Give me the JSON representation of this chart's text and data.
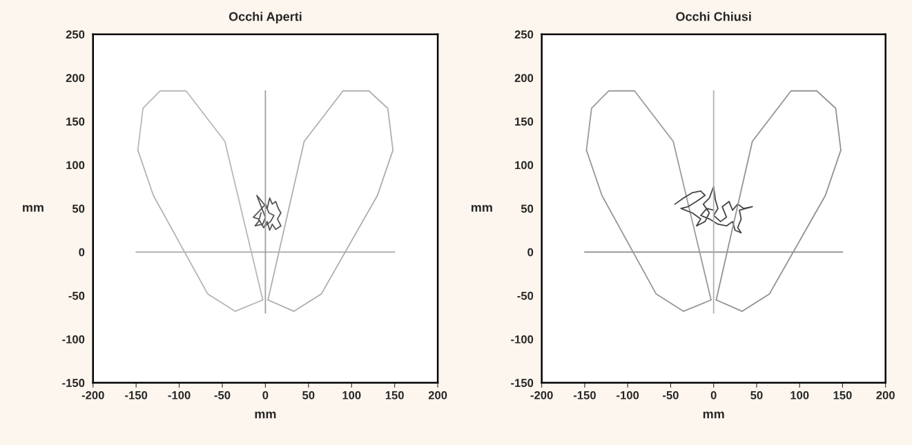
{
  "chart_data": [
    {
      "type": "line",
      "title": "Occhi Aperti",
      "xlabel": "mm",
      "ylabel": "mm",
      "xlim": [
        -200,
        200
      ],
      "ylim": [
        -150,
        250
      ],
      "xticks": [
        -200,
        -150,
        -100,
        -50,
        0,
        50,
        100,
        150,
        200
      ],
      "yticks": [
        -150,
        -100,
        -50,
        0,
        50,
        100,
        150,
        200,
        250
      ],
      "grid": false,
      "legend": false,
      "marker": "none",
      "line_style": "solid",
      "series": [
        {
          "color": "#a8a8a8",
          "x": [
            -150,
            150
          ],
          "values": [
            0,
            0
          ]
        },
        {
          "color": "#b8b8b8",
          "x": [
            -148,
            -142,
            -122,
            -92,
            -47,
            -3
          ],
          "values": [
            117,
            165,
            185,
            185,
            127,
            -55
          ]
        },
        {
          "color": "#555555",
          "x": [
            -5,
            -8,
            -12,
            -3,
            0,
            -6,
            -10,
            -4,
            2,
            5,
            8,
            12,
            15,
            18,
            14,
            18,
            12,
            8,
            5,
            2,
            -2,
            -8,
            -14,
            -6,
            0,
            4,
            10,
            6,
            0
          ],
          "values": [
            45,
            35,
            30,
            32,
            40,
            55,
            65,
            58,
            50,
            62,
            55,
            58,
            50,
            45,
            38,
            30,
            26,
            32,
            25,
            35,
            28,
            38,
            40,
            48,
            55,
            45,
            42,
            35,
            30
          ]
        },
        {
          "color": "#a0a0a0",
          "x": [
            0,
            0
          ],
          "values": [
            -70,
            185
          ]
        },
        {
          "color": "#b0b0b0",
          "x": [
            148,
            142,
            120,
            90,
            45,
            3
          ],
          "values": [
            117,
            165,
            185,
            185,
            127,
            -55
          ]
        },
        {
          "color": "#b4b4b4",
          "x": [
            -3,
            -35,
            -67,
            -130,
            -148
          ],
          "values": [
            -55,
            -68,
            -48,
            65,
            117
          ]
        },
        {
          "color": "#acacac",
          "x": [
            3,
            33,
            65,
            130,
            148
          ],
          "values": [
            -55,
            -68,
            -48,
            65,
            117
          ]
        }
      ]
    },
    {
      "type": "line",
      "title": "Occhi Chiusi",
      "xlabel": "mm",
      "ylabel": "mm",
      "xlim": [
        -200,
        200
      ],
      "ylim": [
        -150,
        250
      ],
      "xticks": [
        -200,
        -150,
        -100,
        -50,
        0,
        50,
        100,
        150,
        200
      ],
      "yticks": [
        -150,
        -100,
        -50,
        0,
        50,
        100,
        150,
        200,
        250
      ],
      "grid": false,
      "legend": false,
      "marker": "none",
      "line_style": "solid",
      "series": [
        {
          "color": "#8a8a8a",
          "x": [
            -150,
            150
          ],
          "values": [
            0,
            0
          ]
        },
        {
          "color": "#9a9a9a",
          "x": [
            -148,
            -142,
            -122,
            -92,
            -47,
            -3
          ],
          "values": [
            117,
            165,
            185,
            185,
            127,
            -55
          ]
        },
        {
          "color": "#444444",
          "x": [
            -45,
            -35,
            -25,
            -15,
            -10,
            -20,
            -30,
            -38,
            -25,
            -15,
            -20,
            -10,
            -5,
            -12,
            -5,
            0,
            2,
            5,
            0,
            8,
            15,
            10,
            18,
            22,
            28,
            35,
            45,
            30,
            32,
            28,
            32,
            25,
            22,
            15,
            5,
            -5,
            -15,
            -8,
            0
          ],
          "values": [
            55,
            62,
            68,
            70,
            65,
            58,
            52,
            50,
            45,
            38,
            30,
            35,
            45,
            55,
            62,
            75,
            60,
            50,
            42,
            35,
            40,
            52,
            58,
            48,
            55,
            50,
            52,
            48,
            38,
            28,
            22,
            25,
            35,
            30,
            32,
            38,
            42,
            50,
            48
          ]
        },
        {
          "color": "#b0b0b0",
          "x": [
            0,
            0
          ],
          "values": [
            -70,
            185
          ]
        },
        {
          "color": "#939393",
          "x": [
            148,
            142,
            120,
            90,
            45,
            3
          ],
          "values": [
            117,
            165,
            185,
            185,
            127,
            -55
          ]
        },
        {
          "color": "#979797",
          "x": [
            -3,
            -35,
            -67,
            -130,
            -148
          ],
          "values": [
            -55,
            -68,
            -48,
            65,
            117
          ]
        },
        {
          "color": "#909090",
          "x": [
            3,
            33,
            65,
            130,
            148
          ],
          "values": [
            -55,
            -68,
            -48,
            65,
            117
          ]
        }
      ]
    }
  ]
}
